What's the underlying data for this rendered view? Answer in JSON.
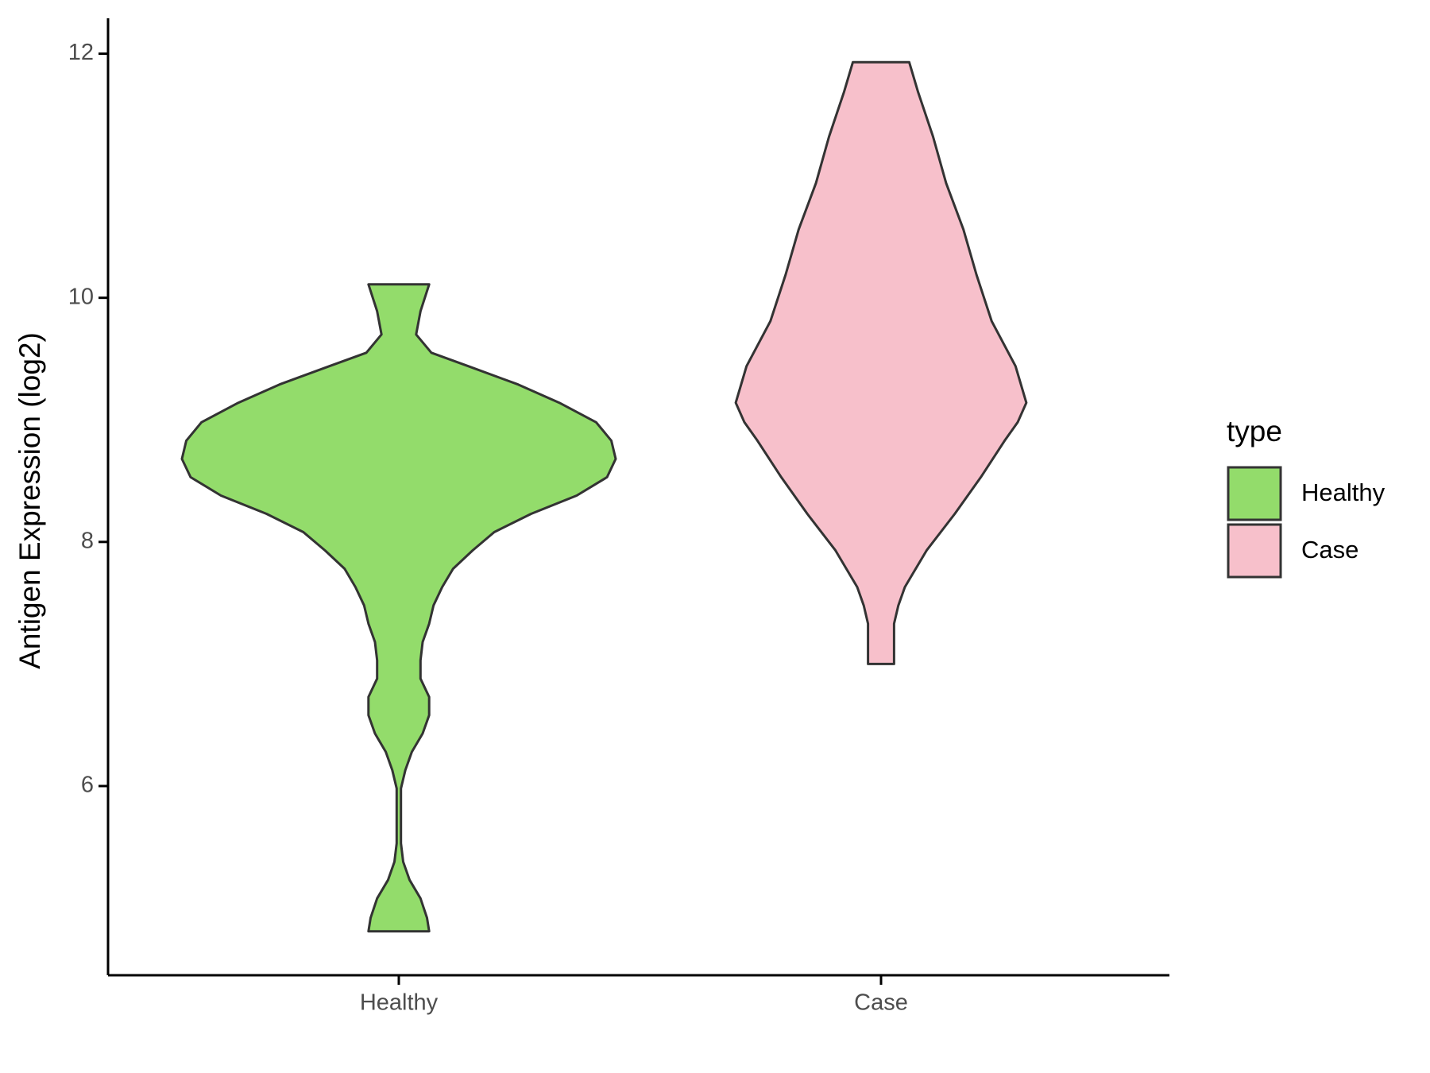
{
  "chart_data": {
    "type": "violin",
    "y_label": "Antigen Expression (log2)",
    "categories": [
      "Healthy",
      "Case"
    ],
    "legend_title": "type",
    "ylim": [
      4.45,
      12.29
    ],
    "yticks": [
      6,
      8,
      10,
      12
    ],
    "series": [
      {
        "name": "Healthy",
        "color": "#93dc6b",
        "y": [
          10.11,
          9.89,
          9.7,
          9.55,
          9.44,
          9.29,
          9.14,
          8.98,
          8.83,
          8.68,
          8.53,
          8.38,
          8.23,
          8.08,
          7.93,
          7.78,
          7.63,
          7.48,
          7.33,
          7.18,
          7.03,
          6.88,
          6.73,
          6.58,
          6.43,
          6.28,
          6.13,
          5.98,
          5.83,
          5.68,
          5.53,
          5.38,
          5.23,
          5.08,
          4.92,
          4.81
        ],
        "density": [
          0.14,
          0.1,
          0.08,
          0.15,
          0.32,
          0.55,
          0.74,
          0.91,
          0.98,
          1.0,
          0.96,
          0.82,
          0.61,
          0.44,
          0.34,
          0.25,
          0.2,
          0.16,
          0.14,
          0.11,
          0.1,
          0.1,
          0.14,
          0.14,
          0.11,
          0.06,
          0.03,
          0.01,
          0.01,
          0.01,
          0.01,
          0.02,
          0.05,
          0.1,
          0.13,
          0.14
        ]
      },
      {
        "name": "Case",
        "color": "#f7c0cb",
        "y": [
          11.93,
          11.69,
          11.32,
          10.94,
          10.56,
          10.19,
          9.81,
          9.44,
          9.14,
          8.98,
          8.83,
          8.53,
          8.23,
          7.93,
          7.63,
          7.48,
          7.33,
          7.18,
          7.0
        ],
        "density": [
          0.13,
          0.17,
          0.24,
          0.3,
          0.38,
          0.44,
          0.51,
          0.62,
          0.67,
          0.63,
          0.57,
          0.46,
          0.34,
          0.21,
          0.11,
          0.08,
          0.06,
          0.06,
          0.06
        ]
      }
    ]
  }
}
